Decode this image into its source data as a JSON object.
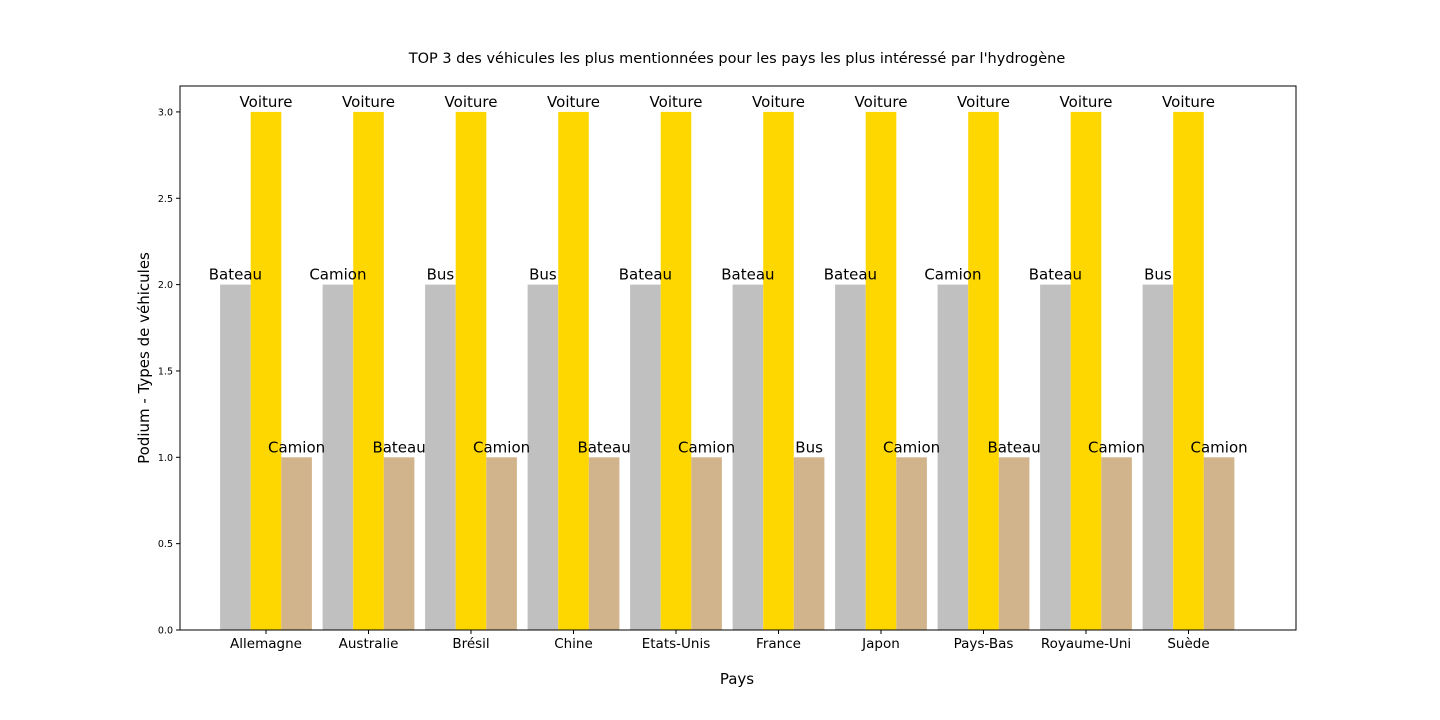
{
  "chart_data": {
    "type": "bar",
    "title": "TOP 3 des véhicules les plus mentionnées pour les pays les plus intéressé par l'hydrogène",
    "xlabel": "Pays",
    "ylabel": "Podium - Types de véhicules",
    "ylim": [
      0,
      3.15
    ],
    "yticks": [
      "0.0",
      "0.5",
      "1.0",
      "1.5",
      "2.0",
      "2.5",
      "3.0"
    ],
    "grid": false,
    "categories": [
      "Allemagne",
      "Australie",
      "Brésil",
      "Chine",
      "Etats-Unis",
      "France",
      "Japon",
      "Pays-Bas",
      "Royaume-Uni",
      "Suède"
    ],
    "series": [
      {
        "color": "#c0c0c0",
        "values": [
          2,
          2,
          2,
          2,
          2,
          2,
          2,
          2,
          2,
          2
        ],
        "labels": [
          "Bateau",
          "Camion",
          "Bus",
          "Bus",
          "Bateau",
          "Bateau",
          "Bateau",
          "Camion",
          "Bateau",
          "Bus"
        ]
      },
      {
        "color": "#ffd700",
        "values": [
          3,
          3,
          3,
          3,
          3,
          3,
          3,
          3,
          3,
          3
        ],
        "labels": [
          "Voiture",
          "Voiture",
          "Voiture",
          "Voiture",
          "Voiture",
          "Voiture",
          "Voiture",
          "Voiture",
          "Voiture",
          "Voiture"
        ]
      },
      {
        "color": "#d2b48c",
        "values": [
          1,
          1,
          1,
          1,
          1,
          1,
          1,
          1,
          1,
          1
        ],
        "labels": [
          "Camion",
          "Bateau",
          "Camion",
          "Bateau",
          "Camion",
          "Bus",
          "Camion",
          "Bateau",
          "Camion",
          "Camion"
        ]
      }
    ]
  }
}
